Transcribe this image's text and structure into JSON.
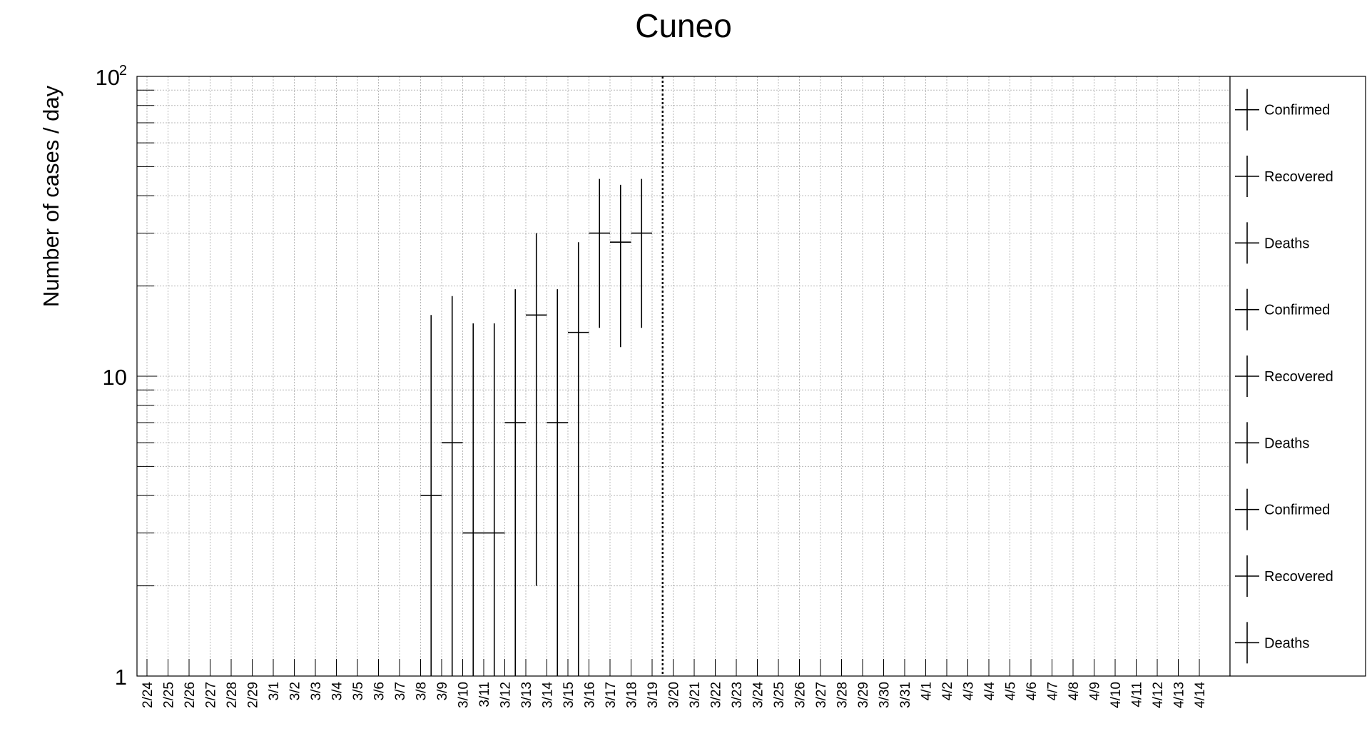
{
  "chart_data": {
    "type": "scatter",
    "title": "Cuneo",
    "ylabel": "Number of cases / day",
    "xlabel": "",
    "y_scale": "log",
    "ylim": [
      1,
      100
    ],
    "ytick_labels": [
      {
        "value": 1,
        "base": "1",
        "sup": ""
      },
      {
        "value": 10,
        "base": "10",
        "sup": ""
      },
      {
        "value": 100,
        "base": "10",
        "sup": "2"
      }
    ],
    "grid": true,
    "categories": [
      "2/24",
      "2/25",
      "2/26",
      "2/27",
      "2/28",
      "2/29",
      "3/1",
      "3/2",
      "3/3",
      "3/4",
      "3/5",
      "3/6",
      "3/7",
      "3/8",
      "3/9",
      "3/10",
      "3/11",
      "3/12",
      "3/13",
      "3/14",
      "3/15",
      "3/16",
      "3/17",
      "3/18",
      "3/19",
      "3/20",
      "3/21",
      "3/22",
      "3/23",
      "3/24",
      "3/25",
      "3/26",
      "3/27",
      "3/28",
      "3/29",
      "3/30",
      "3/31",
      "4/1",
      "4/2",
      "4/3",
      "4/4",
      "4/5",
      "4/6",
      "4/7",
      "4/8",
      "4/9",
      "4/10",
      "4/11",
      "4/12",
      "4/13",
      "4/14"
    ],
    "vertical_marker": "3/19",
    "series": [
      {
        "points": [
          {
            "x": "3/8",
            "y": 4,
            "ylow": 1,
            "yhigh": 16
          },
          {
            "x": "3/9",
            "y": 6,
            "ylow": 1,
            "yhigh": 18.5
          },
          {
            "x": "3/10",
            "y": 3,
            "ylow": 1,
            "yhigh": 15
          },
          {
            "x": "3/11",
            "y": 3,
            "ylow": 1,
            "yhigh": 15
          },
          {
            "x": "3/12",
            "y": 7,
            "ylow": 1,
            "yhigh": 19.5
          },
          {
            "x": "3/13",
            "y": 16,
            "ylow": 2,
            "yhigh": 30
          },
          {
            "x": "3/14",
            "y": 7,
            "ylow": 1,
            "yhigh": 19.5
          },
          {
            "x": "3/15",
            "y": 14,
            "ylow": 1,
            "yhigh": 28
          },
          {
            "x": "3/16",
            "y": 30,
            "ylow": 14.5,
            "yhigh": 45.5
          },
          {
            "x": "3/17",
            "y": 28,
            "ylow": 12.5,
            "yhigh": 43.5
          },
          {
            "x": "3/18",
            "y": 30,
            "ylow": 14.5,
            "yhigh": 45.5
          }
        ]
      }
    ],
    "legend": {
      "position": "right",
      "entries": [
        "Confirmed",
        "Recovered",
        "Deaths",
        "Confirmed",
        "Recovered",
        "Deaths",
        "Confirmed",
        "Recovered",
        "Deaths"
      ]
    }
  }
}
